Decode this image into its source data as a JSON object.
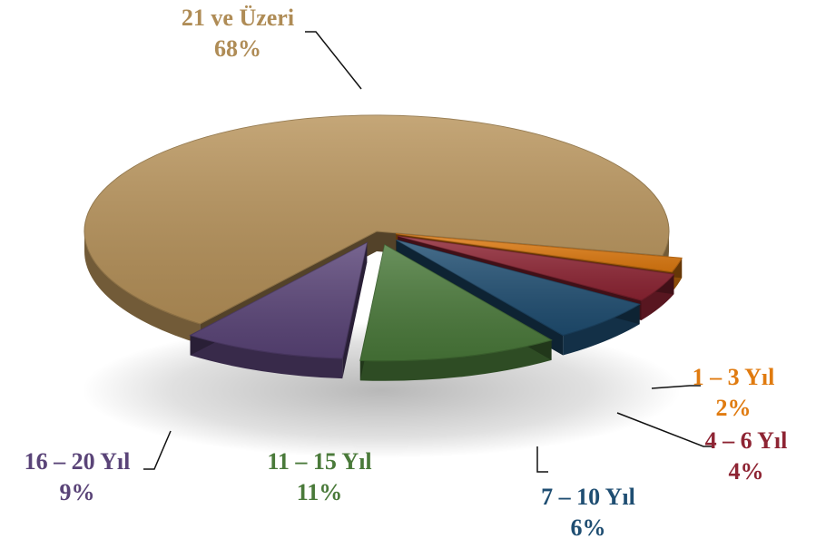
{
  "chart_data": {
    "type": "pie",
    "title": "",
    "unit": "%",
    "slices": [
      {
        "label": "1 – 3 Yıl",
        "value": 2,
        "display": "2%",
        "color": "#e07b10"
      },
      {
        "label": "4 – 6 Yıl",
        "value": 4,
        "display": "4%",
        "color": "#8e2433"
      },
      {
        "label": "7 – 10 Yıl",
        "value": 6,
        "display": "6%",
        "color": "#1f4e72"
      },
      {
        "label": "11 – 15 Yıl",
        "value": 11,
        "display": "11%",
        "color": "#4a7a3a"
      },
      {
        "label": "16 – 20 Yıl",
        "value": 9,
        "display": "9%",
        "color": "#5a4478"
      },
      {
        "label": "21 ve Üzeri",
        "value": 68,
        "display": "68%",
        "color": "#b8935a"
      }
    ],
    "exploded": [
      "1 – 3 Yıl",
      "4 – 6 Yıl",
      "7 – 10 Yıl",
      "11 – 15 Yıl",
      "16 – 20 Yıl"
    ],
    "style": "3d-perspective",
    "legend": "none"
  }
}
